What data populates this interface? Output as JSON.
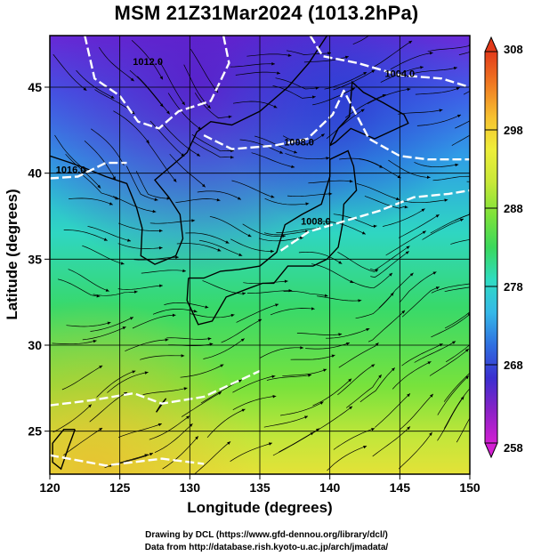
{
  "title": "MSM 21Z31Mar2024 (1013.2hPa)",
  "x_axis": {
    "label": "Longitude (degrees)",
    "ticks": [
      120,
      125,
      130,
      135,
      140,
      145,
      150
    ],
    "range": [
      120,
      150
    ]
  },
  "y_axis": {
    "label": "Latitude (degrees)",
    "ticks": [
      25,
      30,
      35,
      40,
      45
    ],
    "range": [
      22.5,
      48
    ]
  },
  "colorbar": {
    "ticks": [
      258,
      268,
      278,
      288,
      298,
      308
    ],
    "range": [
      258,
      308
    ],
    "stops": [
      "#d21fd2",
      "#8a22c6",
      "#3a2fd0",
      "#2f6fe0",
      "#35b8e8",
      "#2fdcc2",
      "#3ad85c",
      "#7ee23a",
      "#c8e838",
      "#eeee3a",
      "#f6c030",
      "#f07a22",
      "#e23a1a"
    ]
  },
  "isobars": [
    {
      "label": "1012.0",
      "lon": 127.0,
      "lat": 46.3
    },
    {
      "label": "1004.0",
      "lon": 145.0,
      "lat": 45.6
    },
    {
      "label": "1008.0",
      "lon": 137.8,
      "lat": 41.6
    },
    {
      "label": "1016.0",
      "lon": 121.5,
      "lat": 40.0
    },
    {
      "label": "1008.0",
      "lon": 139.0,
      "lat": 37.0
    }
  ],
  "credits": {
    "line1": "Drawing by DCL (https://www.gfd-dennou.org/library/dcl/)",
    "line2": "Data from http://database.rish.kyoto-u.ac.jp/arch/jmadata/"
  }
}
